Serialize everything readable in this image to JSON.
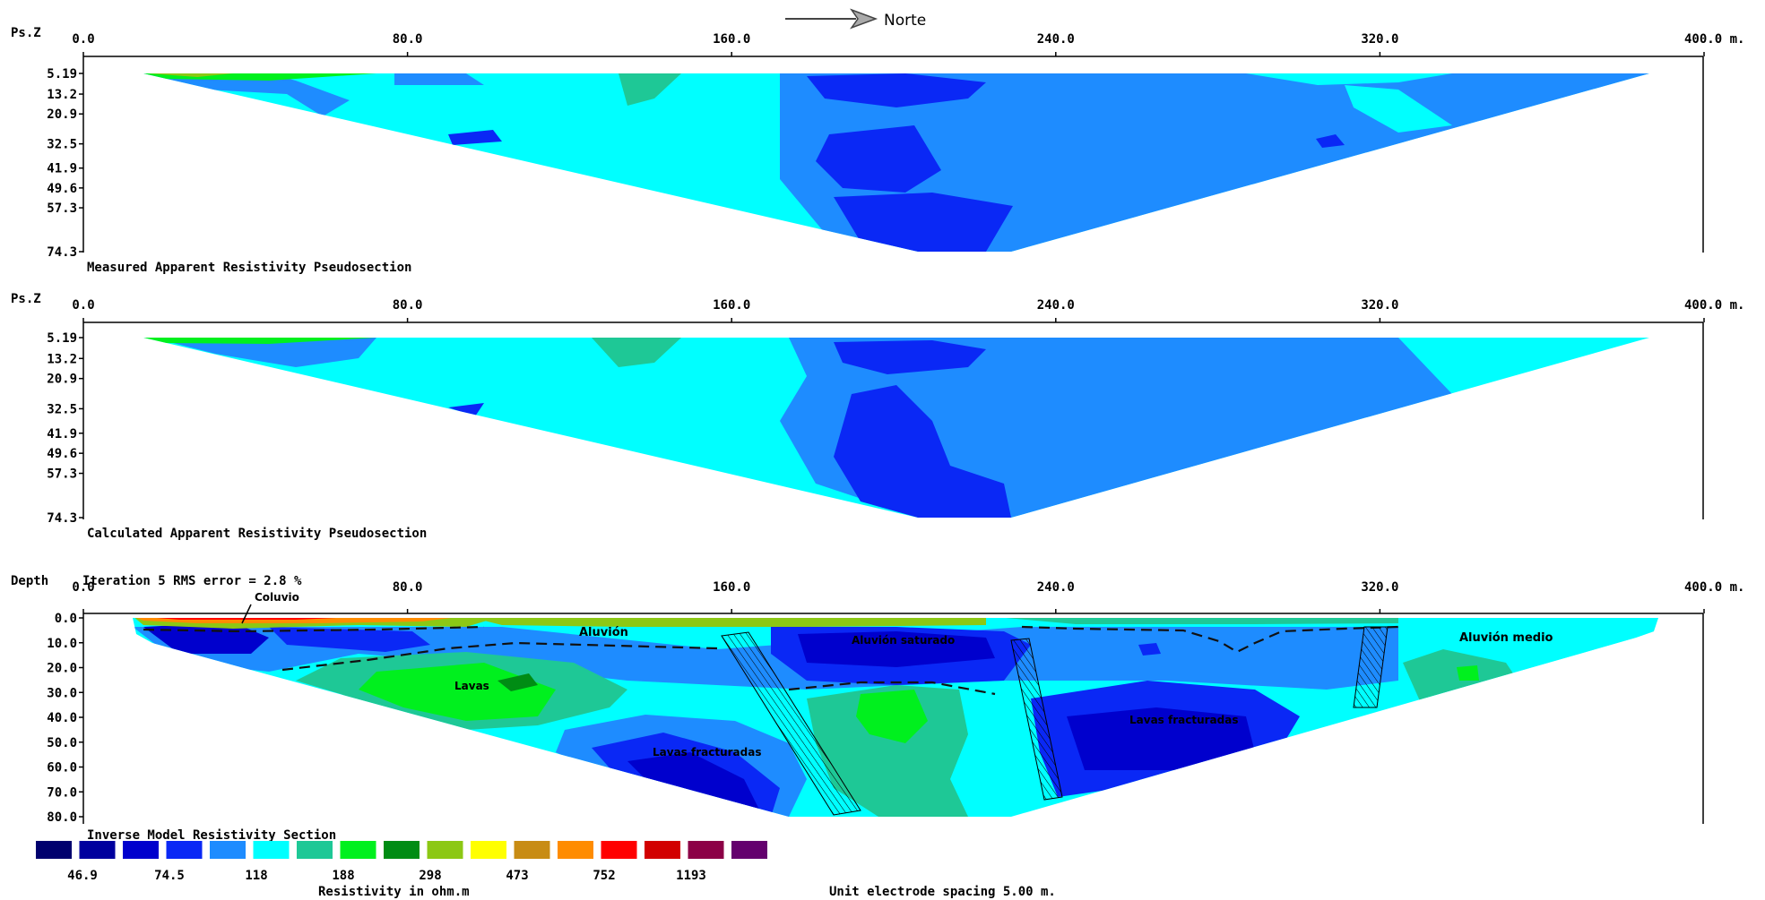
{
  "header": {
    "direction_label": "Norte"
  },
  "x_ticks": [
    "0.0",
    "80.0",
    "160.0",
    "240.0",
    "320.0",
    "400.0 m."
  ],
  "panels": {
    "measured": {
      "axis_label": "Ps.Z",
      "depth_ticks": [
        "5.19",
        "13.2",
        "20.9",
        "32.5",
        "41.9",
        "49.6",
        "57.3",
        "74.3"
      ],
      "caption": "Measured Apparent Resistivity Pseudosection"
    },
    "calculated": {
      "axis_label": "Ps.Z",
      "depth_ticks": [
        "5.19",
        "13.2",
        "20.9",
        "32.5",
        "41.9",
        "49.6",
        "57.3",
        "74.3"
      ],
      "caption": "Calculated Apparent Resistivity Pseudosection"
    },
    "model": {
      "axis_label": "Depth",
      "iteration_text": "Iteration 5 RMS error = 2.8 %",
      "depth_ticks": [
        "0.0",
        "10.0",
        "20.0",
        "30.0",
        "40.0",
        "50.0",
        "60.0",
        "70.0",
        "80.0"
      ],
      "caption": "Inverse Model Resistivity Section",
      "annotations": {
        "coluvio": "Coluvio",
        "aluvion": "Aluvión",
        "aluvion_saturado": "Aluvión saturado",
        "aluvion_medio": "Aluvión medio",
        "lavas": "Lavas",
        "lavas_fracturadas_1": "Lavas fracturadas",
        "lavas_fracturadas_2": "Lavas fracturadas"
      }
    }
  },
  "legend": {
    "colors": [
      "#00006e",
      "#00009e",
      "#0000cd",
      "#0a28f5",
      "#1e8cff",
      "#00ffff",
      "#1ec896",
      "#00f01e",
      "#008c14",
      "#8cc814",
      "#ffff00",
      "#c88c14",
      "#ff8c00",
      "#ff0000",
      "#d20000",
      "#8c0046",
      "#64006e"
    ],
    "labels": [
      "46.9",
      "74.5",
      "118",
      "188",
      "298",
      "473",
      "752",
      "1193"
    ],
    "units_label": "Resistivity in ohm.m",
    "spacing_label": "Unit electrode spacing 5.00 m."
  },
  "chart_data": {
    "type": "heatmap",
    "x_range_m": [
      0,
      400
    ],
    "x_unit": "m.",
    "color_scale": {
      "boundaries_ohm_m": [
        46.9,
        74.5,
        118,
        188,
        298,
        473,
        752,
        1193
      ],
      "colors": [
        "#00006e",
        "#00009e",
        "#0000cd",
        "#0a28f5",
        "#1e8cff",
        "#00ffff",
        "#1ec896",
        "#00f01e",
        "#008c14",
        "#8cc814",
        "#ffff00",
        "#c88c14",
        "#ff8c00",
        "#ff0000",
        "#d20000",
        "#8c0046",
        "#64006e"
      ]
    },
    "panels": [
      {
        "name": "Measured Apparent Resistivity Pseudosection",
        "y_axis": "Ps.Z",
        "depth_range": [
          5.19,
          74.3
        ],
        "dominant_class": "118-188 ohm.m"
      },
      {
        "name": "Calculated Apparent Resistivity Pseudosection",
        "y_axis": "Ps.Z",
        "depth_range": [
          5.19,
          74.3
        ],
        "dominant_class": "118-188 ohm.m"
      },
      {
        "name": "Inverse Model Resistivity Section",
        "y_axis": "Depth",
        "depth_range": [
          0,
          80
        ],
        "rms_error_percent": 2.8,
        "iteration": 5
      }
    ]
  }
}
